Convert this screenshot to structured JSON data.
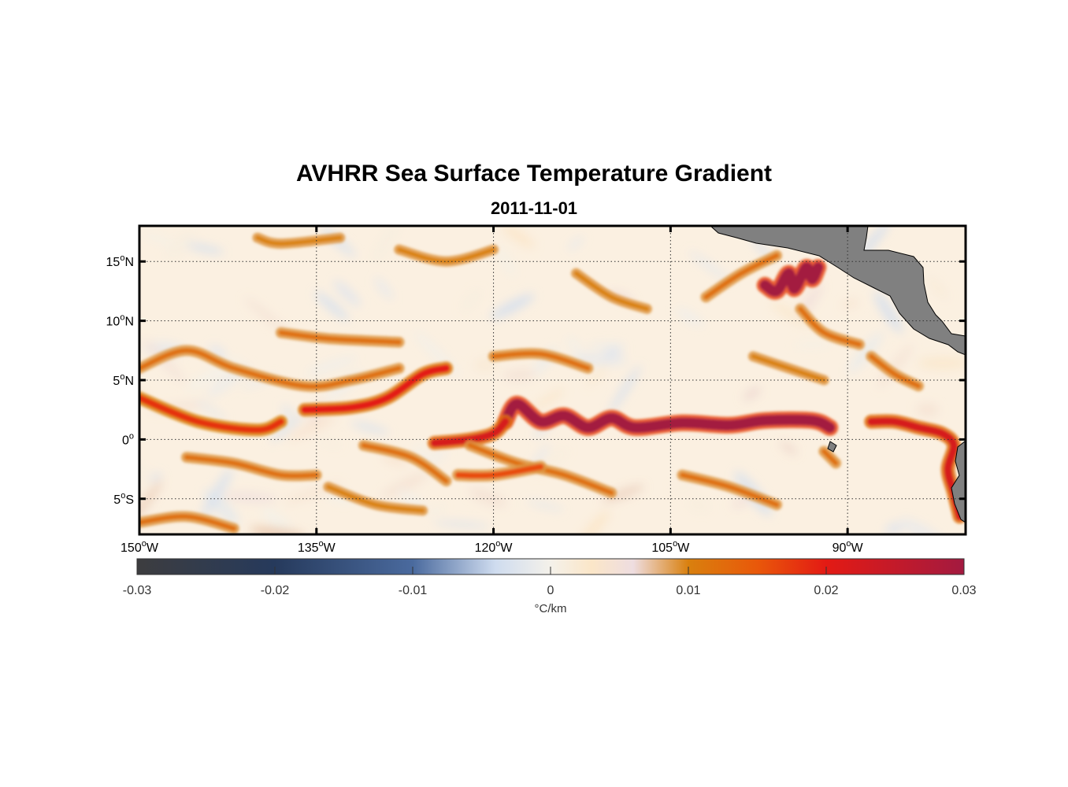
{
  "figure": {
    "title": "AVHRR Sea Surface Temperature Gradient",
    "subtitle": "2011-11-01"
  },
  "map": {
    "extent": {
      "lon_min": -150,
      "lon_max": -80,
      "lat_min": -8,
      "lat_max": 18
    },
    "graticule": "dotted",
    "land_color": "#808080",
    "lat_ticks": [
      {
        "value": 15,
        "label": "15",
        "sup": "o",
        "hemi": "N"
      },
      {
        "value": 10,
        "label": "10",
        "sup": "o",
        "hemi": "N"
      },
      {
        "value": 5,
        "label": "5",
        "sup": "o",
        "hemi": "N"
      },
      {
        "value": 0,
        "label": "0",
        "sup": "o",
        "hemi": ""
      },
      {
        "value": -5,
        "label": "5",
        "sup": "o",
        "hemi": "S"
      }
    ],
    "lon_ticks": [
      {
        "value": -150,
        "label": "150",
        "sup": "o",
        "hemi": "W"
      },
      {
        "value": -135,
        "label": "135",
        "sup": "o",
        "hemi": "W"
      },
      {
        "value": -120,
        "label": "120",
        "sup": "o",
        "hemi": "W"
      },
      {
        "value": -105,
        "label": "105",
        "sup": "o",
        "hemi": "W"
      },
      {
        "value": -90,
        "label": "90",
        "sup": "o",
        "hemi": "W"
      }
    ]
  },
  "colorbar": {
    "min": -0.03,
    "max": 0.03,
    "ticks": [
      "-0.03",
      "-0.02",
      "-0.01",
      "0",
      "0.01",
      "0.02",
      "0.03"
    ],
    "tick_values": [
      -0.03,
      -0.02,
      -0.01,
      0,
      0.01,
      0.02,
      0.03
    ],
    "unit_label": "°C/km",
    "stops": [
      {
        "value": -0.03,
        "color": "#3d3d3f"
      },
      {
        "value": -0.02,
        "color": "#263a5c"
      },
      {
        "value": -0.01,
        "color": "#4a6a9e"
      },
      {
        "value": -0.004,
        "color": "#cfdcef"
      },
      {
        "value": 0,
        "color": "#f4f1ea"
      },
      {
        "value": 0.003,
        "color": "#fbe6c8"
      },
      {
        "value": 0.006,
        "color": "#eedde0"
      },
      {
        "value": 0.01,
        "color": "#d9800e"
      },
      {
        "value": 0.015,
        "color": "#e9580a"
      },
      {
        "value": 0.02,
        "color": "#e31a14"
      },
      {
        "value": 0.03,
        "color": "#a31a40"
      }
    ]
  },
  "fronts": [
    {
      "strength": 0.03,
      "points": [
        [
          -119,
          1.5
        ],
        [
          -118,
          3
        ],
        [
          -116,
          1.5
        ],
        [
          -114,
          2
        ],
        [
          -112,
          1
        ],
        [
          -110,
          1.8
        ],
        [
          -108,
          1
        ],
        [
          -104,
          1.4
        ],
        [
          -100,
          1.2
        ],
        [
          -97,
          1.6
        ],
        [
          -93,
          1.6
        ],
        [
          -91.5,
          1
        ]
      ]
    },
    {
      "strength": 0.022,
      "points": [
        [
          -125,
          -0.3
        ],
        [
          -122,
          0
        ],
        [
          -120,
          0.5
        ],
        [
          -119,
          1.5
        ]
      ]
    },
    {
      "strength": 0.018,
      "points": [
        [
          -150,
          3.5
        ],
        [
          -145,
          1.5
        ],
        [
          -140,
          0.8
        ],
        [
          -138,
          1.5
        ]
      ]
    },
    {
      "strength": 0.02,
      "points": [
        [
          -136,
          2.5
        ],
        [
          -132,
          2.7
        ],
        [
          -129,
          3.5
        ],
        [
          -126,
          5.5
        ],
        [
          -124,
          6
        ]
      ]
    },
    {
      "strength": 0.022,
      "points": [
        [
          -88,
          1.5
        ],
        [
          -86,
          1.5
        ],
        [
          -84,
          1
        ],
        [
          -82,
          0.5
        ],
        [
          -81,
          -0.5
        ],
        [
          -81.5,
          -2.5
        ],
        [
          -81,
          -4.5
        ],
        [
          -80.5,
          -6.5
        ]
      ]
    },
    {
      "strength": 0.03,
      "points": [
        [
          -97,
          13
        ],
        [
          -96,
          12.5
        ],
        [
          -95,
          14
        ],
        [
          -94.5,
          12.7
        ],
        [
          -93.5,
          14.5
        ],
        [
          -93,
          13.5
        ],
        [
          -92.5,
          14.5
        ]
      ]
    },
    {
      "strength": 0.012,
      "points": [
        [
          -150,
          6
        ],
        [
          -146,
          7.5
        ],
        [
          -142,
          6
        ],
        [
          -136,
          4.5
        ],
        [
          -132,
          5
        ],
        [
          -128,
          6
        ]
      ]
    },
    {
      "strength": 0.012,
      "points": [
        [
          -146,
          -1.5
        ],
        [
          -142,
          -2
        ],
        [
          -138,
          -3
        ],
        [
          -135,
          -3
        ]
      ]
    },
    {
      "strength": 0.012,
      "points": [
        [
          -131,
          -0.5
        ],
        [
          -127,
          -1.5
        ],
        [
          -124,
          -3.5
        ]
      ]
    },
    {
      "strength": 0.012,
      "points": [
        [
          -122,
          -0.5
        ],
        [
          -118,
          -2
        ],
        [
          -114,
          -3
        ],
        [
          -110,
          -4.5
        ]
      ]
    },
    {
      "strength": 0.016,
      "points": [
        [
          -123,
          -3
        ],
        [
          -120,
          -3
        ],
        [
          -116,
          -2.3
        ]
      ]
    },
    {
      "strength": 0.012,
      "points": [
        [
          -120,
          7
        ],
        [
          -116,
          7.2
        ],
        [
          -112,
          6
        ]
      ]
    },
    {
      "strength": 0.012,
      "points": [
        [
          -138,
          9
        ],
        [
          -134,
          8.5
        ],
        [
          -128,
          8.2
        ]
      ]
    },
    {
      "strength": 0.01,
      "points": [
        [
          -140,
          17
        ],
        [
          -138,
          16.5
        ],
        [
          -133,
          17
        ]
      ]
    },
    {
      "strength": 0.01,
      "points": [
        [
          -128,
          16
        ],
        [
          -124,
          15
        ],
        [
          -120,
          16
        ]
      ]
    },
    {
      "strength": 0.012,
      "points": [
        [
          -102,
          12
        ],
        [
          -99,
          14
        ],
        [
          -96,
          15.5
        ]
      ]
    },
    {
      "strength": 0.012,
      "points": [
        [
          -94,
          11
        ],
        [
          -92,
          9
        ],
        [
          -89,
          8
        ]
      ]
    },
    {
      "strength": 0.012,
      "points": [
        [
          -104,
          -3
        ],
        [
          -100,
          -4
        ],
        [
          -96,
          -5.5
        ]
      ]
    },
    {
      "strength": 0.012,
      "points": [
        [
          -92,
          -1
        ],
        [
          -91,
          -2
        ]
      ]
    },
    {
      "strength": 0.012,
      "points": [
        [
          -150,
          -7
        ],
        [
          -146,
          -6.5
        ],
        [
          -142,
          -7.5
        ]
      ]
    },
    {
      "strength": 0.01,
      "points": [
        [
          -134,
          -4
        ],
        [
          -130,
          -5.5
        ],
        [
          -126,
          -6
        ]
      ]
    },
    {
      "strength": 0.012,
      "points": [
        [
          -88,
          7
        ],
        [
          -86,
          5.5
        ],
        [
          -84,
          4.5
        ]
      ]
    },
    {
      "strength": 0.01,
      "points": [
        [
          -113,
          14
        ],
        [
          -110,
          12
        ],
        [
          -107,
          11
        ]
      ]
    },
    {
      "strength": 0.01,
      "points": [
        [
          -98,
          7
        ],
        [
          -95,
          6
        ],
        [
          -92,
          5
        ]
      ]
    }
  ]
}
